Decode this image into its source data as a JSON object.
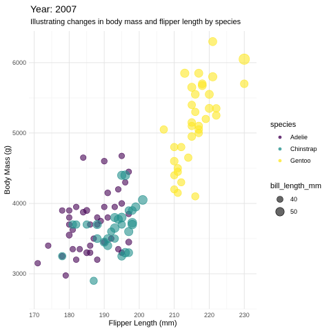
{
  "chart_data": {
    "type": "scatter",
    "title": "Year: 2007",
    "subtitle": "Illustrating changes in body mass and flipper length by species",
    "xlabel": "Flipper Length (mm)",
    "ylabel": "Body Mass (g)",
    "xlim": [
      168.5,
      233.5
    ],
    "ylim": [
      2500,
      6450
    ],
    "x_ticks": [
      170,
      180,
      190,
      200,
      210,
      220,
      230
    ],
    "y_ticks": [
      3000,
      4000,
      5000,
      6000
    ],
    "grid": true,
    "colors": {
      "Adelie": "#440154",
      "Chinstrap": "#21908C",
      "Gentoo": "#FDE725"
    },
    "color_legend": {
      "title": "species",
      "entries": [
        {
          "label": "Adelie",
          "color": "#440154"
        },
        {
          "label": "Chinstrap",
          "color": "#21908C"
        },
        {
          "label": "Gentoo",
          "color": "#FDE725"
        }
      ]
    },
    "size_legend": {
      "title": "bill_length_mm",
      "entries": [
        {
          "label": "40",
          "value": 40
        },
        {
          "label": "50",
          "value": 50
        }
      ]
    },
    "size_range": [
      32,
      60
    ],
    "series": [
      {
        "name": "Adelie",
        "points": [
          [
            171,
            3150,
            38
          ],
          [
            174,
            3400,
            38
          ],
          [
            178,
            3900,
            38
          ],
          [
            179,
            2975,
            38
          ],
          [
            180,
            3550,
            40
          ],
          [
            180,
            3700,
            38
          ],
          [
            180,
            3800,
            38
          ],
          [
            180,
            3900,
            38
          ],
          [
            181,
            3625,
            38
          ],
          [
            181,
            3350,
            38
          ],
          [
            182,
            3950,
            38
          ],
          [
            182,
            3200,
            38
          ],
          [
            183,
            3350,
            38
          ],
          [
            184,
            4650,
            38
          ],
          [
            184,
            3875,
            39
          ],
          [
            185,
            3900,
            40
          ],
          [
            186,
            3700,
            38
          ],
          [
            186,
            3300,
            38
          ],
          [
            187,
            3500,
            38
          ],
          [
            188,
            3800,
            38
          ],
          [
            188,
            3200,
            38
          ],
          [
            189,
            3750,
            38
          ],
          [
            190,
            4600,
            39
          ],
          [
            190,
            3950,
            38
          ],
          [
            190,
            3450,
            40
          ],
          [
            191,
            4150,
            39
          ],
          [
            191,
            3800,
            38
          ],
          [
            192,
            3500,
            38
          ],
          [
            193,
            3950,
            38
          ],
          [
            194,
            4200,
            38
          ],
          [
            194,
            3350,
            38
          ],
          [
            195,
            4675,
            38
          ],
          [
            195,
            4000,
            39
          ],
          [
            195,
            3300,
            38
          ],
          [
            196,
            4300,
            38
          ],
          [
            197,
            4450,
            38
          ],
          [
            197,
            3850,
            38
          ],
          [
            197,
            3450,
            40
          ],
          [
            185,
            3300,
            40
          ],
          [
            186,
            3400,
            38
          ],
          [
            178,
            3250,
            38
          ],
          [
            188,
            3700,
            38
          ]
        ]
      },
      {
        "name": "Chinstrap",
        "points": [
          [
            178,
            3250,
            46
          ],
          [
            181,
            3700,
            47
          ],
          [
            182,
            3700,
            46
          ],
          [
            185,
            3700,
            46
          ],
          [
            187,
            2900,
            45
          ],
          [
            188,
            3500,
            48
          ],
          [
            188,
            3700,
            50
          ],
          [
            190,
            3450,
            50
          ],
          [
            191,
            3500,
            48
          ],
          [
            191,
            3400,
            49
          ],
          [
            192,
            3600,
            46
          ],
          [
            193,
            3800,
            50
          ],
          [
            193,
            3650,
            51
          ],
          [
            193,
            3500,
            46
          ],
          [
            194,
            3775,
            50
          ],
          [
            195,
            3800,
            52
          ],
          [
            195,
            3700,
            46
          ],
          [
            195,
            4400,
            50
          ],
          [
            196,
            3300,
            51
          ],
          [
            196,
            4400,
            52
          ],
          [
            197,
            3900,
            46
          ],
          [
            197,
            3600,
            50
          ],
          [
            197,
            3300,
            48
          ],
          [
            198,
            3725,
            52
          ],
          [
            198,
            3700,
            51
          ],
          [
            198,
            3900,
            48
          ],
          [
            199,
            3950,
            50
          ],
          [
            201,
            4050,
            52
          ],
          [
            195,
            3250,
            48
          ]
        ]
      },
      {
        "name": "Gentoo",
        "points": [
          [
            207,
            5050,
            46
          ],
          [
            210,
            4600,
            47
          ],
          [
            210,
            4800,
            46
          ],
          [
            210,
            4400,
            45
          ],
          [
            211,
            4500,
            46
          ],
          [
            211,
            4150,
            45
          ],
          [
            212,
            4800,
            46
          ],
          [
            212,
            4300,
            45
          ],
          [
            213,
            5850,
            50
          ],
          [
            214,
            4650,
            46
          ],
          [
            215,
            5650,
            49
          ],
          [
            215,
            5400,
            46
          ],
          [
            215,
            5100,
            46
          ],
          [
            215,
            4950,
            47
          ],
          [
            216,
            5550,
            48
          ],
          [
            216,
            4100,
            45
          ],
          [
            217,
            5100,
            47
          ],
          [
            217,
            5850,
            49
          ],
          [
            217,
            5000,
            46
          ],
          [
            218,
            5700,
            48
          ],
          [
            218,
            5675,
            49
          ],
          [
            219,
            5200,
            46
          ],
          [
            220,
            5550,
            49
          ],
          [
            221,
            6300,
            49
          ],
          [
            221,
            5800,
            50
          ],
          [
            222,
            5350,
            47
          ],
          [
            222,
            5250,
            47
          ],
          [
            230,
            6050,
            59
          ],
          [
            230,
            5700,
            47
          ],
          [
            210,
            4200,
            45
          ],
          [
            211,
            4450,
            46
          ],
          [
            217,
            5050,
            47
          ],
          [
            215,
            5150,
            47
          ],
          [
            216,
            5300,
            46
          ],
          [
            220,
            5350,
            49
          ]
        ]
      }
    ]
  }
}
